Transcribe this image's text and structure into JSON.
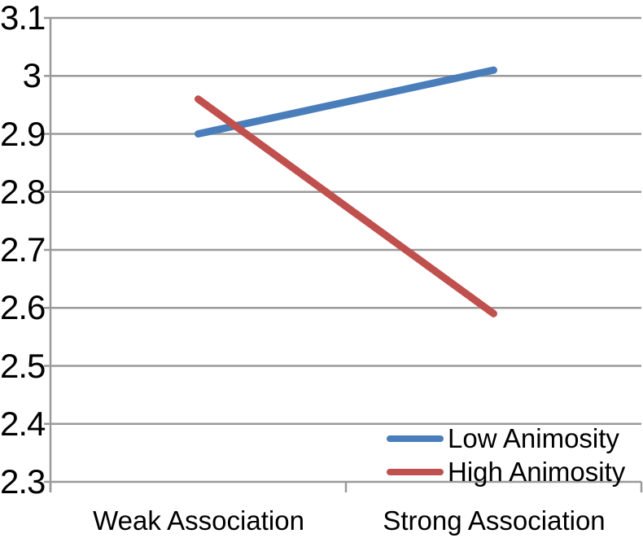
{
  "chart_data": {
    "type": "line",
    "title": "",
    "xlabel": "",
    "ylabel": "",
    "categories": [
      "Weak Association",
      "Strong Association"
    ],
    "series": [
      {
        "name": "Low Animosity",
        "color": "#4A7EBB",
        "values": [
          2.9,
          3.01
        ]
      },
      {
        "name": "High Animosity",
        "color": "#C0504D",
        "values": [
          2.96,
          2.59
        ]
      }
    ],
    "ylim": [
      2.3,
      3.1
    ],
    "yticks": [
      2.3,
      2.4,
      2.5,
      2.6,
      2.7,
      2.8,
      2.9,
      3.0,
      3.1
    ],
    "ytick_labels": [
      "2.3",
      "2.4",
      "2.5",
      "2.6",
      "2.7",
      "2.8",
      "2.9",
      "3",
      "3.1"
    ],
    "grid": true,
    "legend_position": "bottom-right"
  },
  "colors": {
    "grid": "#9A9A9A",
    "axis": "#9A9A9A",
    "text": "#000000",
    "background": "#FFFFFF"
  }
}
